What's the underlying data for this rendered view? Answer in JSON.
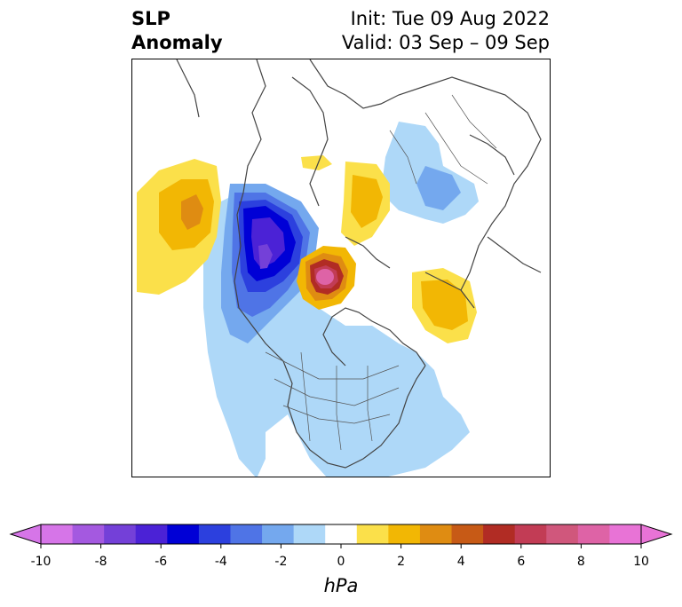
{
  "title": {
    "left_line1": "SLP",
    "left_line2": "Anomaly",
    "right_line1": "Init: Tue 09 Aug 2022",
    "right_line2": "Valid: 03 Sep – 09 Sep"
  },
  "colorbar": {
    "unit": "hPa",
    "ticks": [
      "-10",
      "-8",
      "-6",
      "-4",
      "-2",
      "0",
      "2",
      "4",
      "6",
      "8",
      "10"
    ],
    "levels": [
      -10,
      -9,
      -8,
      -7,
      -6,
      -5,
      -4,
      -3,
      -2,
      -1,
      1,
      2,
      3,
      4,
      5,
      6,
      7,
      8,
      9,
      10
    ],
    "colors": [
      "#d675e8",
      "#a459e0",
      "#7440d8",
      "#4b22d6",
      "#0000d6",
      "#2c40de",
      "#4f74e6",
      "#74a8ee",
      "#aed8f8",
      "#ffffff",
      "#fbe04a",
      "#f2b704",
      "#df8c12",
      "#c75a16",
      "#b12c24",
      "#c23c55",
      "#d0577c",
      "#de63a6",
      "#e873d6"
    ]
  }
}
